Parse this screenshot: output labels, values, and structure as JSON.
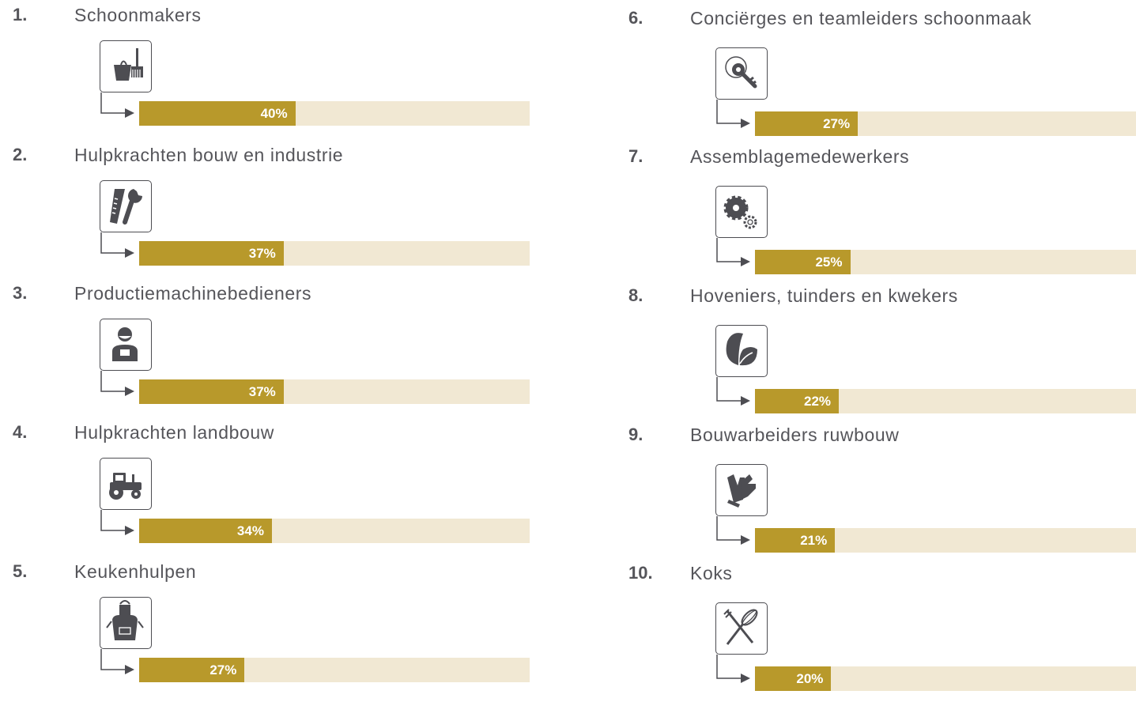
{
  "chart_data": {
    "type": "bar",
    "max_percent": 100,
    "colors": {
      "bar": "#b8992b",
      "track": "#f1e8d3",
      "text": "#55555a"
    },
    "items": [
      {
        "rank": "1.",
        "label": "Schoonmakers",
        "value": 40,
        "value_label": "40%",
        "icon": "bucket-broom-icon"
      },
      {
        "rank": "2.",
        "label": "Hulpkrachten bouw en industrie",
        "value": 37,
        "value_label": "37%",
        "icon": "saw-wrench-icon"
      },
      {
        "rank": "3.",
        "label": "Productiemachinebedieners",
        "value": 37,
        "value_label": "37%",
        "icon": "worker-icon"
      },
      {
        "rank": "4.",
        "label": "Hulpkrachten landbouw",
        "value": 34,
        "value_label": "34%",
        "icon": "tractor-icon"
      },
      {
        "rank": "5.",
        "label": "Keukenhulpen",
        "value": 27,
        "value_label": "27%",
        "icon": "apron-icon"
      },
      {
        "rank": "6.",
        "label": "Conciërges en teamleiders schoonmaak",
        "value": 27,
        "value_label": "27%",
        "icon": "key-icon"
      },
      {
        "rank": "7.",
        "label": "Assemblagemedewerkers",
        "value": 25,
        "value_label": "25%",
        "icon": "gears-icon"
      },
      {
        "rank": "8.",
        "label": "Hoveniers, tuinders en kwekers",
        "value": 22,
        "value_label": "22%",
        "icon": "leaves-icon"
      },
      {
        "rank": "9.",
        "label": "Bouwarbeiders ruwbouw",
        "value": 21,
        "value_label": "21%",
        "icon": "gloves-icon"
      },
      {
        "rank": "10.",
        "label": "Koks",
        "value": 20,
        "value_label": "20%",
        "icon": "fork-whisk-icon"
      }
    ]
  }
}
